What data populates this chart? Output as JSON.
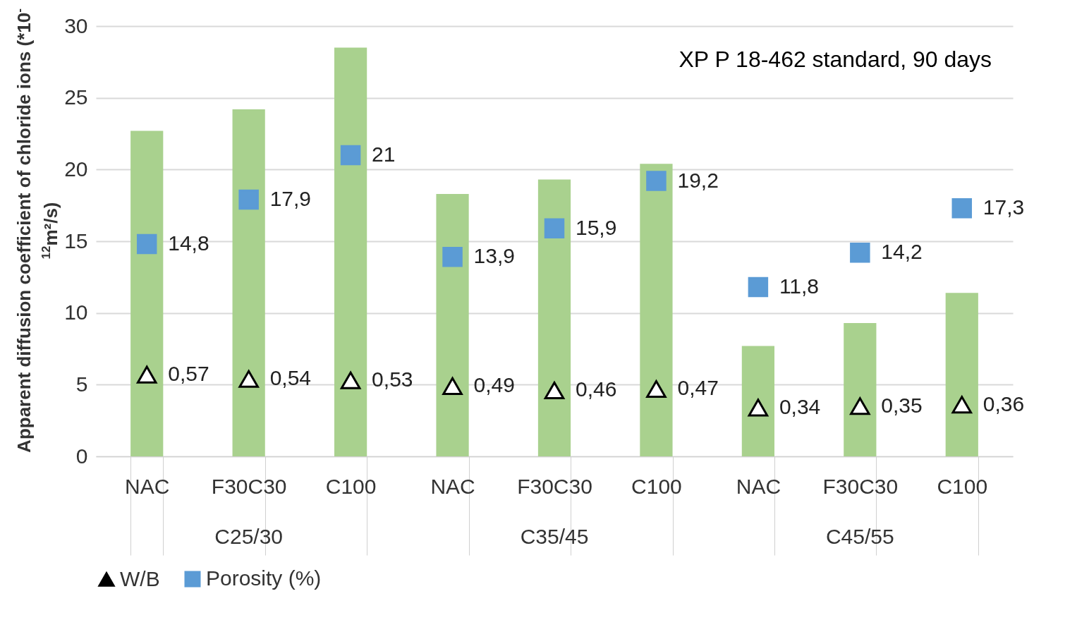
{
  "chart_data": {
    "type": "bar",
    "ylabel": "Apparent diffusion coefficient of chloride ions (*10$^{-12}$m²/s)",
    "categories": [
      "NAC",
      "F30C30",
      "C100",
      "NAC",
      "F30C30",
      "C100",
      "NAC",
      "F30C30",
      "C100"
    ],
    "series": [
      {
        "color": "#a9d18e",
        "values": [
          22.7,
          24.2,
          28.5,
          18.3,
          19.3,
          20.4,
          7.7,
          9.3,
          11.4
        ]
      },
      {
        "name": "W/B",
        "type": "scatter",
        "marker": "triangle",
        "axis": "y2",
        "color": "#000000",
        "values": [
          0.57,
          0.54,
          0.53,
          0.49,
          0.46,
          0.47,
          0.34,
          0.35,
          0.36
        ],
        "value_labels": [
          "0,57",
          "0,54",
          "0,53",
          "0,49",
          "0,46",
          "0,47",
          "0,34",
          "0,35",
          "0,36"
        ]
      },
      {
        "name": "Porosity (%)",
        "type": "scatter",
        "marker": "square",
        "color": "#5b9bd5",
        "values": [
          14.8,
          17.9,
          21,
          13.9,
          15.9,
          19.2,
          11.8,
          14.2,
          17.3
        ],
        "value_labels": [
          "14,8",
          "17,9",
          "21",
          "13,9",
          "15,9",
          "19,2",
          "11,8",
          "14,2",
          "17,3"
        ]
      }
    ],
    "ylim": [
      0,
      30
    ],
    "yticks": [
      0,
      5,
      10,
      15,
      20,
      25,
      30
    ],
    "y2lim": [
      0,
      3
    ],
    "tick_labels": "xy",
    "grid": "y",
    "legend": "bottom",
    "annotations": [
      "XP P 18-462 standard, 90 days",
      "C25/30",
      "C35/45",
      "C45/55"
    ]
  }
}
